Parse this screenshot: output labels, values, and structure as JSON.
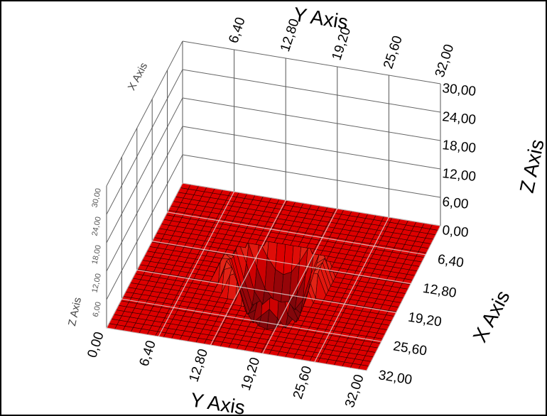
{
  "chart_data": {
    "type": "surface-3d",
    "title": "",
    "x_axis": {
      "label": "X Axis",
      "ticks": [
        "6,40",
        "12,80",
        "19,20",
        "25,60",
        "32,00"
      ],
      "range": [
        0,
        32
      ]
    },
    "y_axis": {
      "label": "Y Axis",
      "ticks": [
        "0,00",
        "6,40",
        "12,80",
        "19,20",
        "25,60",
        "32,00"
      ],
      "range": [
        0,
        32
      ]
    },
    "z_axis": {
      "label": "Z Axis",
      "ticks": [
        "0,00",
        "6,00",
        "12,00",
        "18,00",
        "24,00",
        "30,00"
      ],
      "range": [
        0,
        30
      ]
    },
    "back_y_axis_ticks": [
      "6,40",
      "12,80",
      "19,20",
      "25,60",
      "32,00"
    ],
    "back_z_axis_ticks": [
      "30,00",
      "24,00",
      "18,00",
      "12,00",
      "6,00"
    ],
    "grid": true,
    "surface": {
      "resolution": 32,
      "base_value": 0,
      "feature": "rippled bump centered near X 16, Y 16",
      "colors": {
        "base": "#dd0000",
        "crest": "#f08050",
        "trough": "#5a0a10",
        "mesh": "#2a0000"
      }
    }
  }
}
